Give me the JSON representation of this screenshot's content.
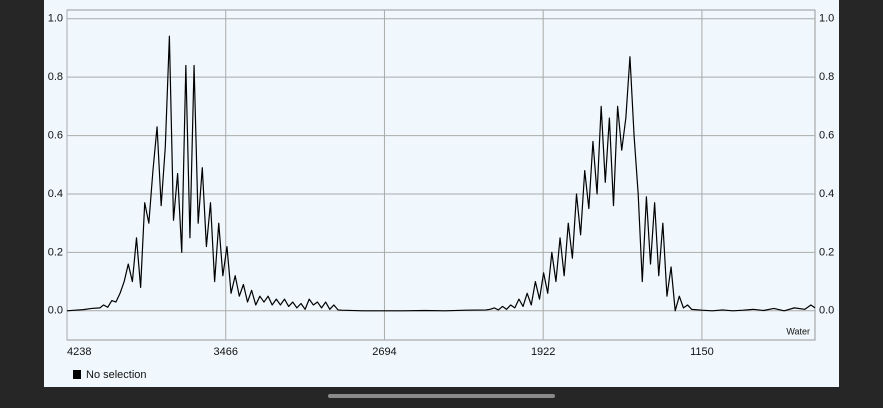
{
  "chart_data": {
    "type": "line",
    "series": [
      {
        "name": "Water",
        "color": "#000000",
        "x": [
          4238,
          4198,
          4158,
          4118,
          4078,
          4060,
          4040,
          4020,
          4000,
          3980,
          3960,
          3940,
          3920,
          3900,
          3880,
          3860,
          3840,
          3820,
          3800,
          3780,
          3760,
          3740,
          3720,
          3700,
          3680,
          3660,
          3640,
          3620,
          3600,
          3580,
          3560,
          3540,
          3520,
          3500,
          3480,
          3460,
          3440,
          3420,
          3400,
          3380,
          3360,
          3340,
          3320,
          3300,
          3280,
          3260,
          3240,
          3220,
          3200,
          3180,
          3160,
          3140,
          3120,
          3100,
          3080,
          3060,
          3040,
          3020,
          3000,
          2980,
          2960,
          2940,
          2920,
          2900,
          2800,
          2700,
          2600,
          2500,
          2400,
          2300,
          2200,
          2180,
          2160,
          2140,
          2120,
          2100,
          2080,
          2060,
          2040,
          2020,
          2000,
          1980,
          1960,
          1940,
          1920,
          1900,
          1880,
          1860,
          1840,
          1820,
          1800,
          1780,
          1760,
          1740,
          1720,
          1700,
          1680,
          1660,
          1640,
          1620,
          1600,
          1580,
          1560,
          1540,
          1520,
          1500,
          1480,
          1460,
          1440,
          1420,
          1400,
          1380,
          1360,
          1340,
          1320,
          1300,
          1280,
          1260,
          1240,
          1220,
          1200,
          1150,
          1100,
          1050,
          1000,
          950,
          900,
          850,
          800,
          750,
          700,
          650,
          620,
          600
        ],
        "values": [
          0.0,
          0.002,
          0.004,
          0.008,
          0.01,
          0.02,
          0.012,
          0.035,
          0.03,
          0.06,
          0.1,
          0.16,
          0.1,
          0.25,
          0.08,
          0.37,
          0.3,
          0.48,
          0.63,
          0.36,
          0.56,
          0.94,
          0.31,
          0.47,
          0.2,
          0.84,
          0.25,
          0.84,
          0.3,
          0.49,
          0.22,
          0.37,
          0.1,
          0.3,
          0.12,
          0.22,
          0.06,
          0.12,
          0.05,
          0.09,
          0.03,
          0.07,
          0.02,
          0.05,
          0.03,
          0.05,
          0.02,
          0.04,
          0.02,
          0.04,
          0.015,
          0.03,
          0.01,
          0.025,
          0.005,
          0.04,
          0.02,
          0.03,
          0.01,
          0.03,
          0.005,
          0.02,
          0.003,
          0.002,
          0.0,
          0.0,
          0.0,
          0.001,
          0.0,
          0.002,
          0.003,
          0.005,
          0.01,
          0.003,
          0.015,
          0.005,
          0.02,
          0.01,
          0.04,
          0.015,
          0.06,
          0.02,
          0.1,
          0.04,
          0.13,
          0.06,
          0.2,
          0.1,
          0.25,
          0.12,
          0.3,
          0.18,
          0.4,
          0.26,
          0.48,
          0.35,
          0.58,
          0.4,
          0.7,
          0.44,
          0.66,
          0.36,
          0.7,
          0.55,
          0.66,
          0.87,
          0.6,
          0.4,
          0.1,
          0.39,
          0.16,
          0.37,
          0.12,
          0.3,
          0.05,
          0.15,
          0.0,
          0.05,
          0.01,
          0.02,
          0.005,
          0.002,
          0.0,
          0.003,
          0.0,
          0.002,
          0.005,
          0.001,
          0.008,
          0.0,
          0.01,
          0.005,
          0.02,
          0.01
        ]
      }
    ],
    "xlim": [
      4238,
      600
    ],
    "xticks": [
      4238,
      3466,
      2694,
      1922,
      1150
    ],
    "ylim": [
      -0.1,
      1.03
    ],
    "yticks": [
      {
        "value": 0,
        "label": "0.0"
      },
      {
        "value": 0.2,
        "label": "0.2"
      },
      {
        "value": 0.4,
        "label": "0.4"
      },
      {
        "value": 0.6,
        "label": "0.6"
      },
      {
        "value": 0.8,
        "label": "0.8"
      },
      {
        "value": 1,
        "label": "1.0"
      }
    ],
    "grid": true,
    "legend_text": "No selection"
  }
}
